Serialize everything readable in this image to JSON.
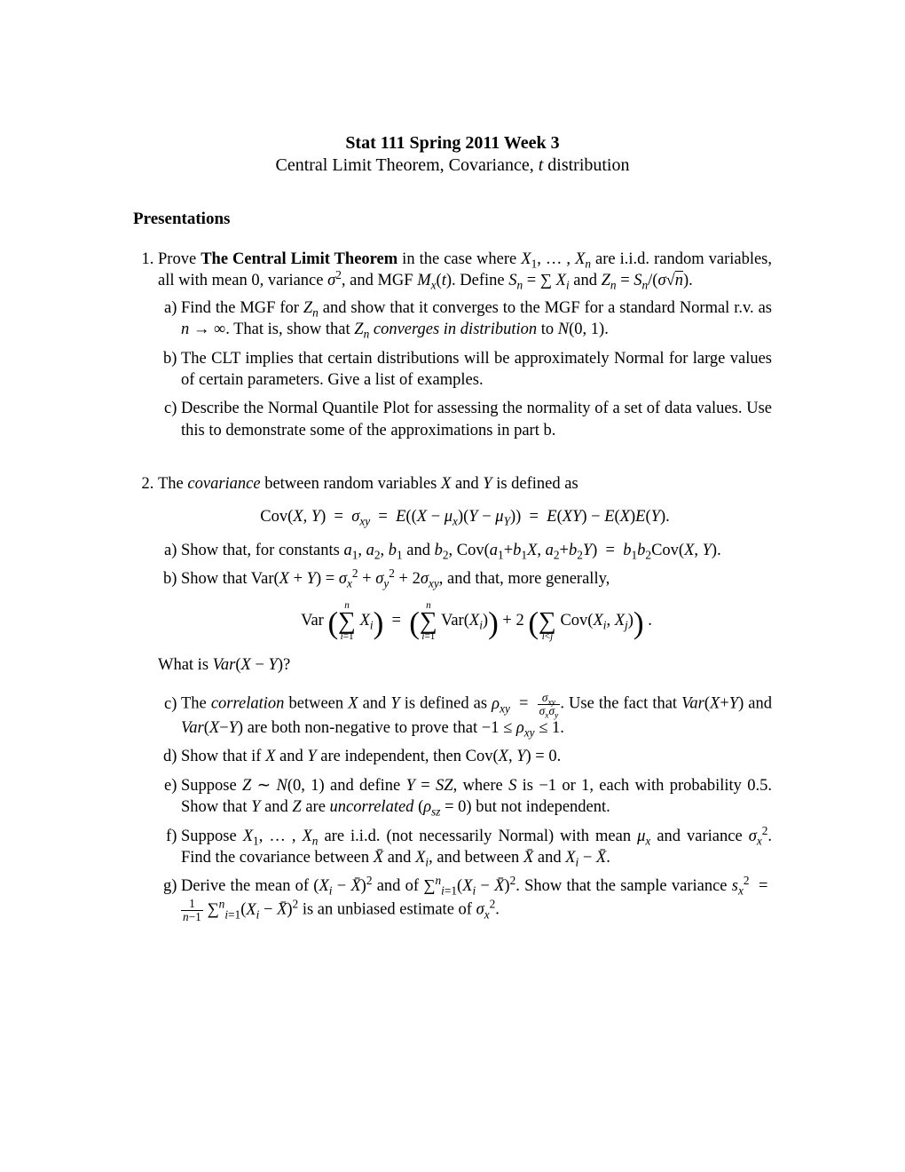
{
  "title": "Stat 111 Spring 2011 Week 3",
  "subtitle_html": "Central Limit Theorem, Covariance, <span class='ital'>t</span> distribution",
  "section": "Presentations",
  "p1_intro_html": "Prove <span class='bold'>The Central Limit Theorem</span> in the case where <span class='ital'>X</span><sub>1</sub>, … , <span class='ital'>X<sub>n</sub></span> are i.i.d. random variables, all with mean 0, variance <span class='ital'>σ</span><sup>2</sup>, and MGF <span class='ital'>M<sub>x</sub></span>(<span class='ital'>t</span>). Define <span class='ital'>S<sub>n</sub></span> = ∑ <span class='ital'>X<sub>i</sub></span> and <span class='ital'>Z<sub>n</sub></span> = <span class='ital'>S<sub>n</sub></span>/(<span class='ital'>σ</span>√<span style='text-decoration:overline'><span class='ital'>n</span></span>).",
  "p1a_html": "Find the MGF for <span class='ital'>Z<sub>n</sub></span> and show that it converges to the MGF for a standard Normal r.v. as <span class='ital'>n</span> → ∞. That is, show that <span class='ital'>Z<sub>n</sub> converges in distribution</span> to <span class='ital'>N</span>(0, 1).",
  "p1b_html": "The CLT implies that certain distributions will be approximately Normal for large values of certain parameters. Give a list of examples.",
  "p1c_html": "Describe the Normal Quantile Plot for assessing the normality of a set of data values. Use this to demonstrate some of the approximations in part b.",
  "p2_intro_html": "The <span class='ital'>covariance</span> between random variables <span class='ital'>X</span> and <span class='ital'>Y</span> is defined as",
  "p2_eq1_html": "Cov(<span class='ital'>X</span>, <span class='ital'>Y</span>) &nbsp;=&nbsp; <span class='ital'>σ<sub>xy</sub></span> &nbsp;=&nbsp; <span class='ital'>E</span>((<span class='ital'>X</span> − <span class='ital'>μ<sub>x</sub></span>)(<span class='ital'>Y</span> − <span class='ital'>μ<sub>Y</sub></span>)) &nbsp;=&nbsp; <span class='ital'>E</span>(<span class='ital'>XY</span>) − <span class='ital'>E</span>(<span class='ital'>X</span>)<span class='ital'>E</span>(<span class='ital'>Y</span>).",
  "p2a_html": "Show that, for constants <span class='ital'>a</span><sub>1</sub>, <span class='ital'>a</span><sub>2</sub>, <span class='ital'>b</span><sub>1</sub> and <span class='ital'>b</span><sub>2</sub>, Cov(<span class='ital'>a</span><sub>1</sub>+<span class='ital'>b</span><sub>1</sub><span class='ital'>X</span>, <span class='ital'>a</span><sub>2</sub>+<span class='ital'>b</span><sub>2</sub><span class='ital'>Y</span>) &nbsp;=&nbsp; <span class='ital'>b</span><sub>1</sub><span class='ital'>b</span><sub>2</sub>Cov(<span class='ital'>X</span>, <span class='ital'>Y</span>).",
  "p2b_html": "Show that Var(<span class='ital'>X</span> + <span class='ital'>Y</span>) = <span class='ital'>σ</span><sub><span class='ital'>x</span></sub><sup>2</sup> + <span class='ital'>σ</span><sub><span class='ital'>y</span></sub><sup>2</sup> + 2<span class='ital'>σ<sub>xy</sub></span>, and that, more generally,",
  "p2_eq2_html": "Var <span class='bigparen'>(</span><span class='sumblock'><span class='top'><span class='ital'>n</span></span><span class='big'>∑</span><span class='bot'><span class='ital'>i</span>=1</span></span> <span class='ital'>X<sub>i</sub></span><span class='bigparen'>)</span> &nbsp;=&nbsp; <span class='bigparen'>(</span><span class='sumblock'><span class='top'><span class='ital'>n</span></span><span class='big'>∑</span><span class='bot'><span class='ital'>i</span>=1</span></span> Var(<span class='ital'>X<sub>i</sub></span>)<span class='bigparen'>)</span> + 2 <span class='bigparen'>(</span><span class='sumblock'><span class='top'>&nbsp;</span><span class='big'>∑</span><span class='bot'><span class='ital'>i</span>&lt;<span class='ital'>j</span></span></span> Cov(<span class='ital'>X<sub>i</sub></span>, <span class='ital'>X<sub>j</sub></span>)<span class='bigparen'>)</span> .",
  "p2b_after_html": "What is <span class='ital'>Var</span>(<span class='ital'>X</span> − <span class='ital'>Y</span>)?",
  "p2c_html": "The <span class='ital'>correlation</span> between <span class='ital'>X</span> and <span class='ital'>Y</span> is defined as <span class='ital'>ρ<sub>xy</sub></span> &nbsp;=&nbsp; <span class='frac'><span class='num'><span class='ital'>σ<sub>xy</sub></span></span><span class='den'><span class='ital'>σ<sub>x</sub>σ<sub>y</sub></span></span></span>. Use the fact that <span class='ital'>Var</span>(<span class='ital'>X</span>+<span class='ital'>Y</span>) and <span class='ital'>Var</span>(<span class='ital'>X</span>−<span class='ital'>Y</span>) are both non-negative to prove that −1 ≤ <span class='ital'>ρ<sub>xy</sub></span> ≤ 1.",
  "p2d_html": "Show that if <span class='ital'>X</span> and <span class='ital'>Y</span> are independent, then Cov(<span class='ital'>X</span>, <span class='ital'>Y</span>) = 0.",
  "p2e_html": "Suppose <span class='ital'>Z</span> ∼ <span class='ital'>N</span>(0, 1) and define <span class='ital'>Y</span> = <span class='ital'>SZ</span>, where <span class='ital'>S</span> is −1 or 1, each with probability 0.5. Show that <span class='ital'>Y</span> and <span class='ital'>Z</span> are <span class='ital'>uncorrelated</span> (<span class='ital'>ρ<sub>sz</sub></span> = 0) but not independent.",
  "p2f_html": "Suppose <span class='ital'>X</span><sub>1</sub>, … , <span class='ital'>X<sub>n</sub></span> are i.i.d. (not necessarily Normal) with mean <span class='ital'>μ<sub>x</sub></span> and variance <span class='ital'>σ</span><sub><span class='ital'>x</span></sub><sup>2</sup>. Find the covariance between <span class='ital'>X̄</span> and <span class='ital'>X<sub>i</sub></span>, and between <span class='ital'>X̄</span> and <span class='ital'>X<sub>i</sub></span> − <span class='ital'>X̄</span>.",
  "p2g_html": "Derive the mean of (<span class='ital'>X<sub>i</sub></span> − <span class='ital'>X̄</span>)<sup>2</sup> and of ∑<sup><span class='ital'>n</span></sup><sub><span class='ital'>i</span>=1</sub>(<span class='ital'>X<sub>i</sub></span> − <span class='ital'>X̄</span>)<sup>2</sup>. Show that the sample variance <span class='ital'>s</span><sub><span class='ital'>x</span></sub><sup>2</sup> &nbsp;=&nbsp; <span class='frac'><span class='num'>1</span><span class='den'><span class='ital'>n</span>−1</span></span> ∑<sup><span class='ital'>n</span></sup><sub><span class='ital'>i</span>=1</sub>(<span class='ital'>X<sub>i</sub></span> − <span class='ital'>X̄</span>)<sup>2</sup> is an unbiased estimate of <span class='ital'>σ</span><sub><span class='ital'>x</span></sub><sup>2</sup>."
}
